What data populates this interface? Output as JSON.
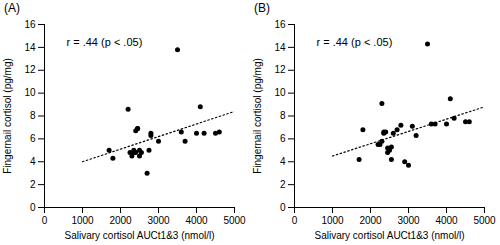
{
  "chart_data": [
    {
      "type": "scatter",
      "title": "(A)",
      "xlabel": "Salivary cortisol AUCt1&3 (nmol/l)",
      "ylabel": "Fingernail cortisol (pg/mg)",
      "annotation": "r = .44 (p < .05)",
      "xlim": [
        0,
        5000
      ],
      "xticks": [
        0,
        1000,
        2000,
        3000,
        4000,
        5000
      ],
      "ylim": [
        0,
        16
      ],
      "yticks": [
        0,
        2,
        4,
        6,
        8,
        10,
        12,
        14,
        16
      ],
      "grid": false,
      "series": [
        {
          "type": "scatter",
          "color": "#000000",
          "marker": "circle",
          "x": [
            1700,
            1800,
            2200,
            2250,
            2300,
            2350,
            2350,
            2400,
            2400,
            2450,
            2450,
            2500,
            2500,
            2550,
            2700,
            2750,
            2800,
            2800,
            3000,
            3500,
            3600,
            3700,
            4000,
            4100,
            4200,
            4500,
            4600
          ],
          "values": [
            5.0,
            4.3,
            8.6,
            4.8,
            4.5,
            4.8,
            5.0,
            4.8,
            6.7,
            6.9,
            6.9,
            5.0,
            4.5,
            4.8,
            3.0,
            5.0,
            6.5,
            6.3,
            5.8,
            13.8,
            6.6,
            5.8,
            6.5,
            8.8,
            6.5,
            6.5,
            6.6
          ]
        },
        {
          "type": "line",
          "color": "#000000",
          "line_style": "dotted",
          "x": [
            1000,
            5000
          ],
          "values": [
            4.0,
            8.4
          ]
        }
      ]
    },
    {
      "type": "scatter",
      "title": "(B)",
      "xlabel": "Salivary cortisol AUCt1&3 (nmol/l)",
      "ylabel": "Fingernail cortisol (pg/mg)",
      "annotation": "r = .44 (p < .05)",
      "xlim": [
        0,
        5000
      ],
      "xticks": [
        0,
        1000,
        2000,
        3000,
        4000,
        5000
      ],
      "ylim": [
        0,
        16
      ],
      "yticks": [
        0,
        2,
        4,
        6,
        8,
        10,
        12,
        14,
        16
      ],
      "grid": false,
      "series": [
        {
          "type": "scatter",
          "color": "#000000",
          "marker": "circle",
          "x": [
            1700,
            1800,
            2200,
            2250,
            2300,
            2300,
            2350,
            2350,
            2400,
            2450,
            2450,
            2500,
            2550,
            2550,
            2600,
            2700,
            2800,
            2900,
            3000,
            3100,
            3200,
            3500,
            3600,
            3700,
            4000,
            4100,
            4200,
            4500,
            4600
          ],
          "values": [
            4.2,
            6.8,
            5.5,
            5.5,
            5.8,
            9.1,
            6.6,
            6.5,
            6.6,
            4.8,
            5.2,
            5.0,
            5.3,
            4.2,
            6.5,
            6.8,
            7.2,
            4.0,
            3.7,
            7.1,
            6.3,
            14.3,
            7.3,
            7.3,
            7.3,
            9.5,
            7.8,
            7.5,
            7.5
          ]
        },
        {
          "type": "line",
          "color": "#000000",
          "line_style": "dotted",
          "x": [
            1000,
            5000
          ],
          "values": [
            4.5,
            8.8
          ]
        }
      ]
    }
  ]
}
